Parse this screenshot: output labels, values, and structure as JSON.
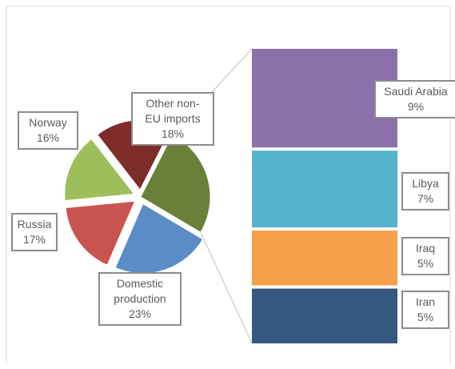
{
  "chart_data": {
    "type": "bar-of-pie",
    "title": "",
    "pie": {
      "slices": [
        {
          "name": "Saudi Arabia, Libya, Iraq, Iran",
          "value": 26,
          "color": "#6a7f37",
          "exploded": false
        },
        {
          "name": "Domestic production",
          "label": [
            "Domestic",
            "production"
          ],
          "value": 23,
          "color": "#5b8cc6",
          "exploded": true
        },
        {
          "name": "Russia",
          "label": [
            "Russia"
          ],
          "value": 17,
          "color": "#c9544f",
          "exploded": true
        },
        {
          "name": "Norway",
          "label": [
            "Norway"
          ],
          "value": 16,
          "color": "#9dbe5a",
          "exploded": true
        },
        {
          "name": "Other non-EU imports",
          "label": [
            "Other non-",
            "EU imports"
          ],
          "value": 18,
          "color": "#7d2c2a",
          "exploded": true
        }
      ]
    },
    "bar": {
      "segments": [
        {
          "name": "Saudi Arabia",
          "value": 9,
          "color": "#8b71aa"
        },
        {
          "name": "Libya",
          "value": 7,
          "color": "#55b3cc"
        },
        {
          "name": "Iraq",
          "value": 5,
          "color": "#f6a04c"
        },
        {
          "name": "Iran",
          "value": 5,
          "color": "#355880"
        }
      ]
    },
    "value_suffix": "%",
    "legend": "none",
    "grid": false
  }
}
